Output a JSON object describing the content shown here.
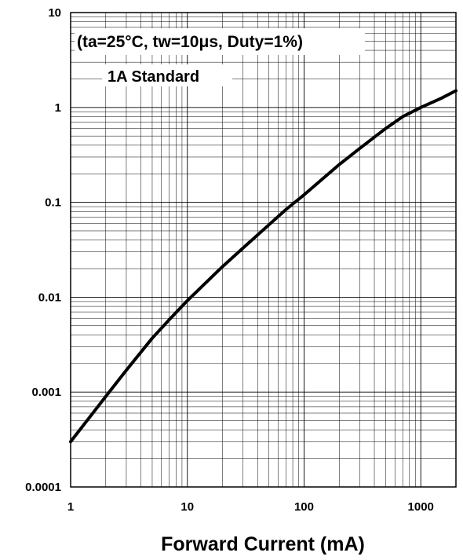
{
  "chart_data": {
    "type": "line",
    "title": "",
    "xlabel": "Forward Current (mA)",
    "ylabel": "",
    "x_scale": "log",
    "y_scale": "log",
    "xlim": [
      1,
      2000
    ],
    "ylim": [
      0.0001,
      10
    ],
    "grid": true,
    "x_ticks": [
      {
        "value": 1,
        "label": "1"
      },
      {
        "value": 10,
        "label": "10"
      },
      {
        "value": 100,
        "label": "100"
      },
      {
        "value": 1000,
        "label": "1000"
      }
    ],
    "y_ticks": [
      {
        "value": 0.0001,
        "label": "0.0001"
      },
      {
        "value": 0.001,
        "label": "0.001"
      },
      {
        "value": 0.01,
        "label": "0.01"
      },
      {
        "value": 0.1,
        "label": "0.1"
      },
      {
        "value": 1,
        "label": "1"
      },
      {
        "value": 10,
        "label": "10"
      }
    ],
    "annotations": [
      "(ta=25°C, tw=10μs, Duty=1%)",
      "1A Standard"
    ],
    "series": [
      {
        "color": "#000000",
        "x": [
          1,
          2,
          3,
          5,
          7,
          10,
          20,
          30,
          50,
          70,
          100,
          200,
          300,
          500,
          700,
          1000,
          1500,
          2000
        ],
        "y": [
          0.0003,
          0.0009,
          0.0017,
          0.0037,
          0.0058,
          0.0092,
          0.021,
          0.033,
          0.058,
          0.084,
          0.12,
          0.25,
          0.37,
          0.6,
          0.8,
          1.0,
          1.25,
          1.5
        ]
      }
    ]
  }
}
